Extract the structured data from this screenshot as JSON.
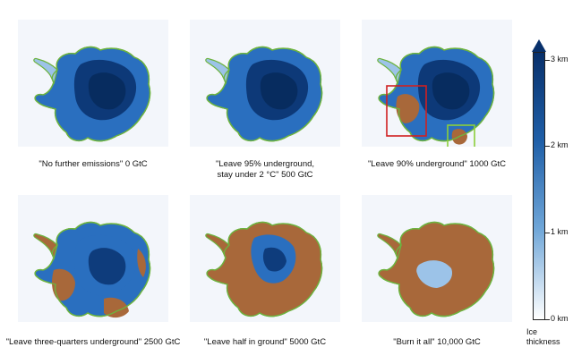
{
  "panels": [
    {
      "caption": "\"No further emissions\" 0 GtC",
      "melt": 0
    },
    {
      "caption": "\"Leave 95% underground, stay under 2 °C\" 500 GtC",
      "caption_line1": "\"Leave 95% underground,",
      "caption_line2": "stay under 2 °C\" 500 GtC",
      "melt": 0
    },
    {
      "caption": "\"Leave 90% underground\" 1000 GtC",
      "melt": 1
    },
    {
      "caption": "\"Leave three-quarters underground\" 2500 GtC",
      "melt": 2
    },
    {
      "caption": "\"Leave half in ground\" 5000 GtC",
      "melt": 3
    },
    {
      "caption": "\"Burn it all\" 10,000 GtC",
      "melt": 4
    }
  ],
  "colorbar": {
    "title_line1": "Ice",
    "title_line2": "thickness",
    "ticks": [
      "3 km",
      "2 km",
      "1 km",
      "0 km"
    ]
  },
  "colors": {
    "deep_ice": "#08306b",
    "mid_ice": "#2a6fbf",
    "thin_ice": "#9cc3e8",
    "exposed_rock": "#a8683a",
    "coastline": "#6db33f",
    "highlight_box_red": "#d02020",
    "highlight_box_green": "#8ccf3a"
  }
}
